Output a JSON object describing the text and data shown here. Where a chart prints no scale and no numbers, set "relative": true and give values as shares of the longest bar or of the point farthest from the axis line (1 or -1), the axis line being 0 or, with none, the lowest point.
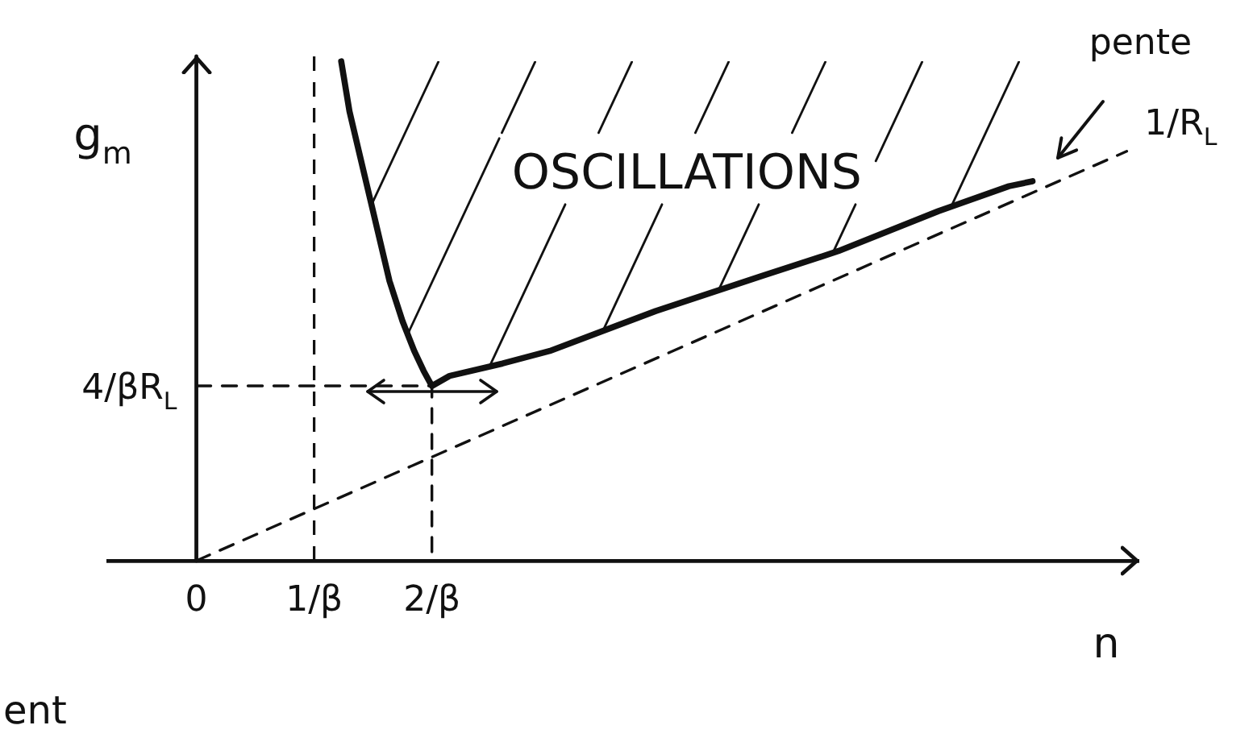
{
  "chart_data": {
    "type": "line",
    "xlabel": "n",
    "ylabel": "g$_{m}$",
    "relative": true,
    "xlim": [
      -0.75,
      8.0
    ],
    "xticks": [
      {
        "value": 0,
        "label": "0"
      },
      {
        "value": 1,
        "label": "1/β"
      },
      {
        "value": 2,
        "label": "2/β"
      }
    ],
    "series": [
      {
        "color": "#111111",
        "x": [
          1.23,
          1.3,
          1.38,
          1.5,
          1.64,
          1.75,
          1.85,
          1.93,
          2,
          2.15,
          2.6,
          3,
          3.9,
          4.8,
          5.45,
          6.3,
          6.9,
          7.1
        ],
        "values": [
          1,
          0.9,
          0.82,
          0.7,
          0.56,
          0.48,
          0.42,
          0.38,
          0.35,
          0.37,
          0.395,
          0.42,
          0.5,
          0.57,
          0.62,
          0.7,
          0.75,
          0.76
        ]
      },
      {
        "color": "#111111",
        "line_style": "dashed",
        "x": [
          0,
          7.9
        ],
        "values": [
          0,
          0.82
        ]
      },
      {
        "color": "#111111",
        "line_style": "dashed",
        "x": [
          0,
          2,
          2
        ],
        "values": [
          0.35,
          0.35,
          0
        ]
      }
    ],
    "ref_lines": [
      {
        "axis": "x",
        "value": 1,
        "line_style": "dashed",
        "color": "#111111"
      }
    ],
    "annotations": [
      "OSCILLATIONS",
      {
        "text": "4/βR$_{L}$",
        "x": 0,
        "y": 0.35
      },
      {
        "text": "pente 1/R$_{L}$",
        "x": 7.4,
        "y": 0.77
      },
      "ent"
    ],
    "marker": "none",
    "grid": false,
    "legend": false
  }
}
